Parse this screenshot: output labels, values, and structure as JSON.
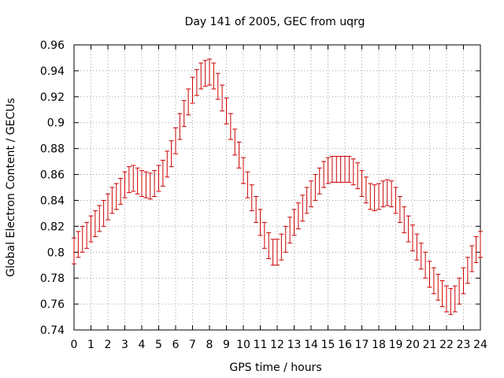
{
  "chart_data": {
    "type": "line",
    "title": "Day 141 of 2005, GEC from uqrg",
    "xlabel": "GPS time / hours",
    "ylabel": "Global Electron Content / GECUs",
    "xlim": [
      0,
      24
    ],
    "ylim": [
      0.74,
      0.96
    ],
    "xticks": [
      "0",
      "1",
      "2",
      "3",
      "4",
      "5",
      "6",
      "7",
      "8",
      "9",
      "10",
      "11",
      "12",
      "13",
      "14",
      "15",
      "16",
      "17",
      "18",
      "19",
      "20",
      "21",
      "22",
      "23",
      "24"
    ],
    "yticks": [
      "0.74",
      "0.76",
      "0.78",
      "0.8",
      "0.82",
      "0.84",
      "0.86",
      "0.88",
      "0.9",
      "0.92",
      "0.94",
      "0.96"
    ],
    "grid": true,
    "series_color": "#cc0000",
    "error": 0.01,
    "series": [
      {
        "x": [
          0,
          0.25,
          0.5,
          0.75,
          1,
          1.25,
          1.5,
          1.75,
          2,
          2.25,
          2.5,
          2.75,
          3,
          3.25,
          3.5,
          3.75,
          4,
          4.25,
          4.5,
          4.75,
          5,
          5.25,
          5.5,
          5.75,
          6,
          6.25,
          6.5,
          6.75,
          7,
          7.25,
          7.5,
          7.75,
          8,
          8.25,
          8.5,
          8.75,
          9,
          9.25,
          9.5,
          9.75,
          10,
          10.25,
          10.5,
          10.75,
          11,
          11.25,
          11.5,
          11.75,
          12,
          12.25,
          12.5,
          12.75,
          13,
          13.25,
          13.5,
          13.75,
          14,
          14.25,
          14.5,
          14.75,
          15,
          15.25,
          15.5,
          15.75,
          16,
          16.25,
          16.5,
          16.75,
          17,
          17.25,
          17.5,
          17.75,
          18,
          18.25,
          18.5,
          18.75,
          19,
          19.25,
          19.5,
          19.75,
          20,
          20.25,
          20.5,
          20.75,
          21,
          21.25,
          21.5,
          21.75,
          22,
          22.25,
          22.5,
          22.75,
          23,
          23.25,
          23.5,
          23.75,
          24
        ],
        "y": [
          0.801,
          0.806,
          0.81,
          0.813,
          0.818,
          0.822,
          0.826,
          0.83,
          0.835,
          0.84,
          0.843,
          0.847,
          0.852,
          0.856,
          0.857,
          0.855,
          0.853,
          0.852,
          0.851,
          0.853,
          0.857,
          0.861,
          0.868,
          0.876,
          0.886,
          0.897,
          0.907,
          0.916,
          0.925,
          0.931,
          0.936,
          0.938,
          0.939,
          0.936,
          0.928,
          0.919,
          0.909,
          0.897,
          0.885,
          0.875,
          0.863,
          0.852,
          0.842,
          0.833,
          0.823,
          0.813,
          0.805,
          0.8,
          0.8,
          0.804,
          0.81,
          0.817,
          0.823,
          0.828,
          0.834,
          0.84,
          0.845,
          0.85,
          0.855,
          0.86,
          0.863,
          0.864,
          0.864,
          0.864,
          0.864,
          0.864,
          0.862,
          0.859,
          0.853,
          0.848,
          0.843,
          0.842,
          0.843,
          0.845,
          0.846,
          0.845,
          0.84,
          0.833,
          0.825,
          0.818,
          0.811,
          0.804,
          0.797,
          0.79,
          0.783,
          0.778,
          0.773,
          0.768,
          0.764,
          0.762,
          0.764,
          0.77,
          0.778,
          0.786,
          0.795,
          0.802,
          0.806
        ]
      }
    ]
  }
}
